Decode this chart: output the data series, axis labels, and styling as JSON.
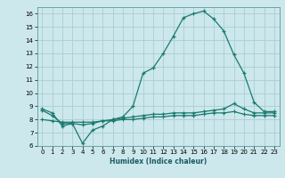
{
  "xlabel": "Humidex (Indice chaleur)",
  "xlim": [
    -0.5,
    23.5
  ],
  "ylim": [
    6,
    16.5
  ],
  "yticks": [
    6,
    7,
    8,
    9,
    10,
    11,
    12,
    13,
    14,
    15,
    16
  ],
  "xticks": [
    0,
    1,
    2,
    3,
    4,
    5,
    6,
    7,
    8,
    9,
    10,
    11,
    12,
    13,
    14,
    15,
    16,
    17,
    18,
    19,
    20,
    21,
    22,
    23
  ],
  "bg_color": "#cce8ec",
  "grid_color": "#aacdd4",
  "line_color": "#1a7a6e",
  "curve1_x": [
    0,
    1,
    2,
    3,
    4,
    5,
    6,
    7,
    8,
    9,
    10,
    11,
    12,
    13,
    14,
    15,
    16,
    17,
    18,
    19,
    20,
    21,
    22,
    23
  ],
  "curve1_y": [
    8.8,
    8.5,
    7.5,
    7.7,
    6.2,
    7.2,
    7.5,
    8.0,
    8.2,
    9.0,
    11.5,
    11.9,
    13.0,
    14.3,
    15.7,
    16.0,
    16.2,
    15.6,
    14.7,
    12.9,
    11.5,
    9.3,
    8.6,
    8.6
  ],
  "curve2_x": [
    0,
    1,
    2,
    3,
    4,
    5,
    6,
    7,
    8,
    9,
    10,
    11,
    12,
    13,
    14,
    15,
    16,
    17,
    18,
    19,
    20,
    21,
    22,
    23
  ],
  "curve2_y": [
    8.7,
    8.3,
    7.7,
    7.7,
    7.6,
    7.7,
    7.9,
    8.0,
    8.1,
    8.2,
    8.3,
    8.4,
    8.4,
    8.5,
    8.5,
    8.5,
    8.6,
    8.7,
    8.8,
    9.2,
    8.8,
    8.5,
    8.5,
    8.5
  ],
  "curve3_x": [
    0,
    1,
    2,
    3,
    4,
    5,
    6,
    7,
    8,
    9,
    10,
    11,
    12,
    13,
    14,
    15,
    16,
    17,
    18,
    19,
    20,
    21,
    22,
    23
  ],
  "curve3_y": [
    8.0,
    7.9,
    7.8,
    7.8,
    7.8,
    7.8,
    7.9,
    7.9,
    8.0,
    8.0,
    8.1,
    8.2,
    8.2,
    8.3,
    8.3,
    8.3,
    8.4,
    8.5,
    8.5,
    8.6,
    8.4,
    8.3,
    8.3,
    8.3
  ]
}
